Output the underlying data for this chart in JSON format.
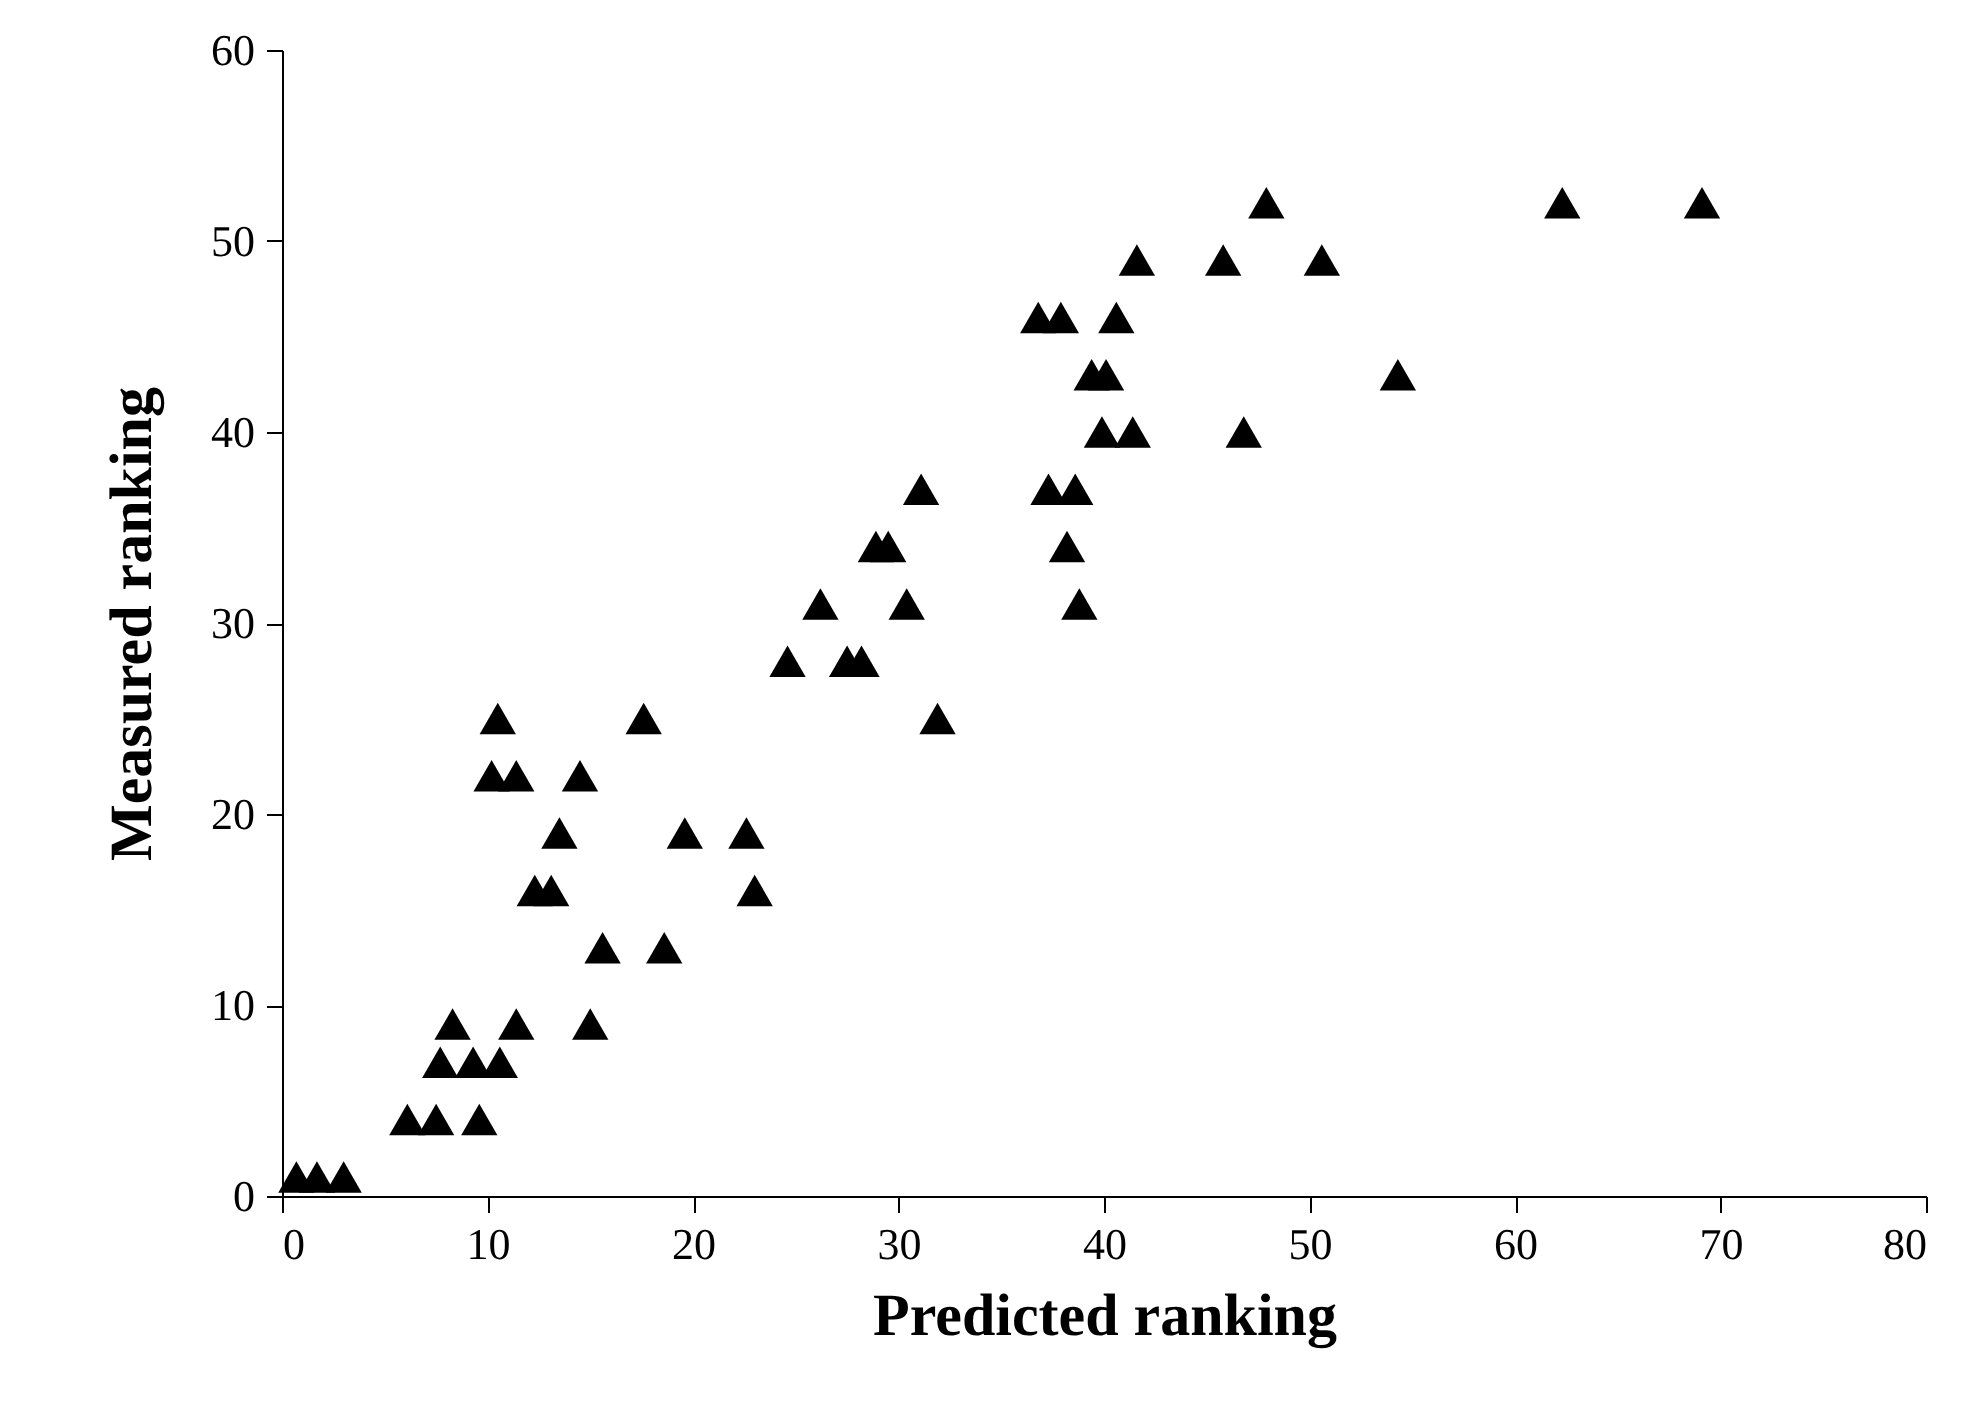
{
  "chart_data": {
    "type": "scatter",
    "xlabel": "Predicted ranking",
    "ylabel": "Measured ranking",
    "xlim": [
      0,
      80
    ],
    "xticks": [
      0,
      10,
      20,
      30,
      40,
      50,
      60,
      70,
      80
    ],
    "ylim": [
      0,
      60
    ],
    "yticks": [
      0,
      10,
      20,
      30,
      40,
      50,
      60
    ],
    "grid": false,
    "legend": false,
    "marker": "triangle",
    "series": [
      {
        "color": "#000000",
        "x": [
          0.7,
          1.7,
          3.0,
          6.1,
          7.5,
          9.6,
          7.7,
          9.3,
          10.6,
          8.3,
          11.4,
          15.0,
          15.6,
          18.6,
          12.3,
          13.1,
          23.0,
          13.5,
          19.6,
          22.6,
          10.2,
          11.4,
          14.5,
          10.5,
          17.6,
          31.9,
          24.6,
          27.5,
          28.2,
          26.2,
          30.4,
          38.8,
          28.9,
          29.5,
          38.2,
          31.1,
          37.3,
          38.6,
          39.9,
          41.4,
          46.8,
          39.4,
          40.1,
          54.3,
          36.8,
          37.9,
          40.6,
          41.6,
          45.8,
          50.6,
          47.9,
          62.3,
          69.1
        ],
        "values": [
          1,
          1,
          1,
          4,
          4,
          4,
          7,
          7,
          7,
          9,
          9,
          9,
          13,
          13,
          16,
          16,
          16,
          19,
          19,
          19,
          22,
          22,
          22,
          25,
          25,
          25,
          28,
          28,
          28,
          31,
          31,
          31,
          34,
          34,
          34,
          37,
          37,
          37,
          40,
          40,
          40,
          43,
          43,
          43,
          46,
          46,
          46,
          49,
          49,
          49,
          52,
          52,
          52
        ]
      }
    ]
  }
}
